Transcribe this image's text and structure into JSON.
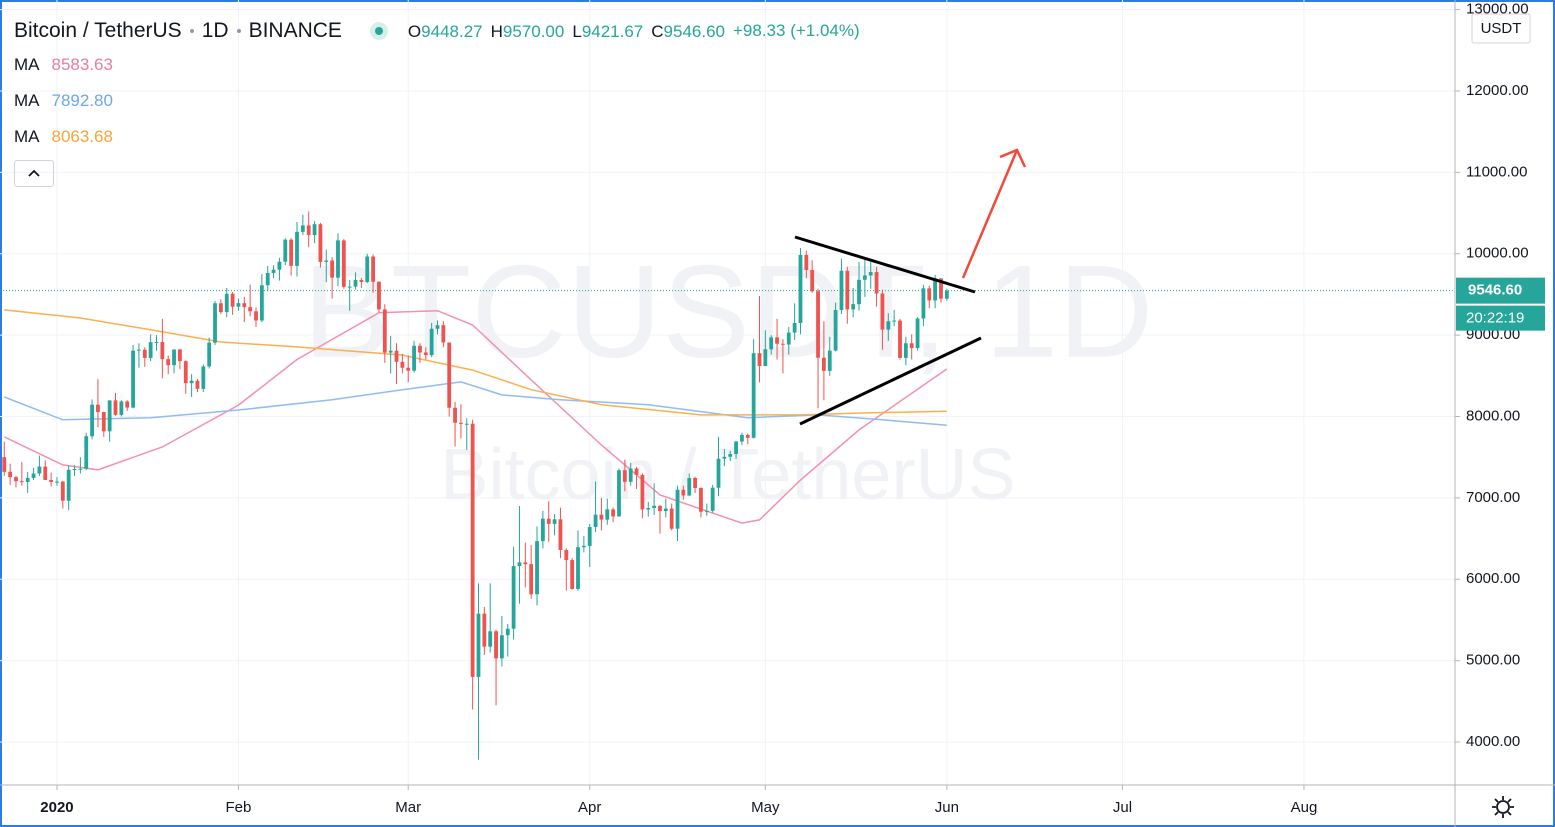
{
  "chart_data": {
    "type": "candlestick",
    "symbol": "Bitcoin / TetherUS",
    "interval": "1D",
    "exchange": "BINANCE",
    "readout_keys": [
      "O",
      "H",
      "L",
      "C"
    ],
    "readout": [
      {
        "value": 9448.27,
        "label": "9448.27"
      },
      {
        "value": 9570,
        "label": "9570.00"
      },
      {
        "value": 9421.67,
        "label": "9421.67"
      },
      {
        "value": 9546.6,
        "label": "9546.60"
      }
    ],
    "change": {
      "value": 98.33,
      "label": "+98.33 (+1.04%)"
    },
    "watermark": [
      "BTCUSDT, 1D",
      "Bitcoin / TetherUS"
    ],
    "currency": "USDT",
    "last_price": {
      "value": 9546.6,
      "label": "9546.60"
    },
    "countdown": "20:22:19",
    "up_color": "#26a69a",
    "down_color": "#ef5350",
    "grid": true,
    "xlim": [
      -0.73,
      247.8
    ],
    "xticks": [
      {
        "value": 9,
        "label": "2020"
      },
      {
        "value": 40,
        "label": "Feb"
      },
      {
        "value": 69,
        "label": "Mar"
      },
      {
        "value": 100,
        "label": "Apr"
      },
      {
        "value": 130,
        "label": "May"
      },
      {
        "value": 161,
        "label": "Jun"
      },
      {
        "value": 191,
        "label": "Jul"
      },
      {
        "value": 222,
        "label": "Aug"
      }
    ],
    "ylim": [
      3472,
      13118
    ],
    "yticks": [
      {
        "value": 4000,
        "label": "4000.00"
      },
      {
        "value": 5000,
        "label": "5000.00"
      },
      {
        "value": 6000,
        "label": "6000.00"
      },
      {
        "value": 7000,
        "label": "7000.00"
      },
      {
        "value": 8000,
        "label": "8000.00"
      },
      {
        "value": 9000,
        "label": "9000.00"
      },
      {
        "value": 10000,
        "label": "10000.00"
      },
      {
        "value": 11000,
        "label": "11000.00"
      },
      {
        "value": 12000,
        "label": "12000.00"
      },
      {
        "value": 13000,
        "label": "13000.00"
      }
    ],
    "ohlc": [
      [
        7500,
        7690,
        7270,
        7320
      ],
      [
        7320,
        7420,
        7160,
        7255
      ],
      [
        7255,
        7270,
        7130,
        7205
      ],
      [
        7205,
        7440,
        7150,
        7195
      ],
      [
        7195,
        7320,
        7060,
        7245
      ],
      [
        7245,
        7370,
        7220,
        7300
      ],
      [
        7300,
        7520,
        7270,
        7385
      ],
      [
        7385,
        7460,
        7290,
        7220
      ],
      [
        7220,
        7310,
        7140,
        7195
      ],
      [
        7195,
        7255,
        7150,
        7200
      ],
      [
        7200,
        7210,
        6870,
        6965
      ],
      [
        6965,
        7400,
        6850,
        7345
      ],
      [
        7345,
        7400,
        7270,
        7355
      ],
      [
        7355,
        7500,
        7300,
        7358
      ],
      [
        7358,
        7800,
        7340,
        7758
      ],
      [
        7758,
        8210,
        7720,
        8145
      ],
      [
        8145,
        8460,
        7870,
        8055
      ],
      [
        8055,
        8060,
        7750,
        7818
      ],
      [
        7818,
        8200,
        7690,
        8198
      ],
      [
        8198,
        8290,
        8010,
        8020
      ],
      [
        8020,
        8200,
        8000,
        8185
      ],
      [
        8185,
        8200,
        8070,
        8110
      ],
      [
        8110,
        8880,
        8100,
        8810
      ],
      [
        8810,
        8900,
        8600,
        8821
      ],
      [
        8821,
        8850,
        8610,
        8720
      ],
      [
        8720,
        9010,
        8680,
        8913
      ],
      [
        8913,
        9000,
        8810,
        8915
      ],
      [
        8915,
        9200,
        8470,
        8705
      ],
      [
        8705,
        8750,
        8520,
        8631
      ],
      [
        8631,
        8770,
        8530,
        8824
      ],
      [
        8824,
        8830,
        8580,
        8680
      ],
      [
        8680,
        8690,
        8280,
        8410
      ],
      [
        8410,
        8520,
        8240,
        8440
      ],
      [
        8440,
        8460,
        8300,
        8340
      ],
      [
        8340,
        8640,
        8300,
        8615
      ],
      [
        8615,
        8970,
        8590,
        8908
      ],
      [
        8908,
        9420,
        8880,
        9392
      ],
      [
        9392,
        9440,
        9260,
        9284
      ],
      [
        9284,
        9580,
        9220,
        9508
      ],
      [
        9508,
        9530,
        9250,
        9350
      ],
      [
        9350,
        9450,
        9300,
        9393
      ],
      [
        9393,
        9470,
        9160,
        9344
      ],
      [
        9344,
        9620,
        9230,
        9293
      ],
      [
        9293,
        9340,
        9100,
        9180
      ],
      [
        9180,
        9750,
        9160,
        9613
      ],
      [
        9613,
        9850,
        9540,
        9764
      ],
      [
        9764,
        9860,
        9700,
        9804
      ],
      [
        9804,
        9950,
        9670,
        9902
      ],
      [
        9902,
        10190,
        9860,
        10173
      ],
      [
        10173,
        10190,
        9730,
        9851
      ],
      [
        9851,
        10390,
        9720,
        10269
      ],
      [
        10269,
        10480,
        10230,
        10348
      ],
      [
        10348,
        10520,
        10080,
        10230
      ],
      [
        10230,
        10400,
        10130,
        10363
      ],
      [
        10363,
        10380,
        9830,
        9900
      ],
      [
        9900,
        10050,
        9650,
        9917
      ],
      [
        9917,
        9960,
        9450,
        9706
      ],
      [
        9706,
        10250,
        9600,
        10164
      ],
      [
        10164,
        10180,
        9570,
        9593
      ],
      [
        9593,
        9680,
        9300,
        9596
      ],
      [
        9596,
        9770,
        9560,
        9677
      ],
      [
        9677,
        9700,
        9580,
        9653
      ],
      [
        9653,
        10000,
        9640,
        9966
      ],
      [
        9966,
        9990,
        9520,
        9656
      ],
      [
        9656,
        9660,
        9280,
        9316
      ],
      [
        9316,
        9380,
        8660,
        8785
      ],
      [
        8785,
        8990,
        8530,
        8808
      ],
      [
        8808,
        8900,
        8400,
        8672
      ],
      [
        8672,
        8770,
        8530,
        8599
      ],
      [
        8599,
        8750,
        8420,
        8563
      ],
      [
        8563,
        8930,
        8540,
        8869
      ],
      [
        8869,
        8900,
        8660,
        8787
      ],
      [
        8787,
        8850,
        8700,
        8755
      ],
      [
        8755,
        9150,
        8730,
        9078
      ],
      [
        9078,
        9180,
        9010,
        9122
      ],
      [
        9122,
        9170,
        8850,
        8909
      ],
      [
        8909,
        8910,
        8000,
        8108
      ],
      [
        8108,
        8180,
        7630,
        7923
      ],
      [
        7923,
        8150,
        7730,
        7909
      ],
      [
        7909,
        7980,
        7590,
        7911
      ],
      [
        7911,
        7960,
        4400,
        4800
      ],
      [
        4800,
        5950,
        3782,
        5578
      ],
      [
        5578,
        5660,
        5070,
        5172
      ],
      [
        5172,
        5950,
        5100,
        5361
      ],
      [
        5361,
        5380,
        4450,
        5028
      ],
      [
        5028,
        5550,
        4930,
        5312
      ],
      [
        5312,
        5450,
        5050,
        5393
      ],
      [
        5393,
        6400,
        5260,
        6162
      ],
      [
        6162,
        6900,
        5700,
        6208
      ],
      [
        6208,
        6450,
        5900,
        6186
      ],
      [
        6186,
        6420,
        5760,
        5816
      ],
      [
        5816,
        6650,
        5680,
        6469
      ],
      [
        6469,
        6840,
        6380,
        6744
      ],
      [
        6744,
        6960,
        6460,
        6681
      ],
      [
        6681,
        6800,
        6540,
        6737
      ],
      [
        6737,
        6880,
        6260,
        6360
      ],
      [
        6360,
        6380,
        5860,
        6236
      ],
      [
        6236,
        6260,
        5870,
        5881
      ],
      [
        5881,
        6600,
        5860,
        6394
      ],
      [
        6394,
        6530,
        6330,
        6410
      ],
      [
        6410,
        6680,
        6150,
        6642
      ],
      [
        6642,
        7200,
        6580,
        6794
      ],
      [
        6794,
        7000,
        6600,
        6733
      ],
      [
        6733,
        6990,
        6670,
        6859
      ],
      [
        6859,
        6880,
        6700,
        6772
      ],
      [
        6772,
        7360,
        6770,
        7340
      ],
      [
        7340,
        7470,
        7080,
        7198
      ],
      [
        7198,
        7430,
        7150,
        7361
      ],
      [
        7361,
        7380,
        7110,
        7283
      ],
      [
        7283,
        7300,
        6750,
        6858
      ],
      [
        6858,
        6950,
        6770,
        6876
      ],
      [
        6876,
        7180,
        6790,
        6903
      ],
      [
        6903,
        6910,
        6560,
        6838
      ],
      [
        6838,
        6990,
        6760,
        6869
      ],
      [
        6869,
        6930,
        6600,
        6621
      ],
      [
        6621,
        7150,
        6470,
        7100
      ],
      [
        7100,
        7150,
        6980,
        7030
      ],
      [
        7030,
        7300,
        7020,
        7244
      ],
      [
        7244,
        7260,
        7060,
        7122
      ],
      [
        7122,
        7130,
        6760,
        6830
      ],
      [
        6830,
        6930,
        6780,
        6841
      ],
      [
        6841,
        7160,
        6820,
        7125
      ],
      [
        7125,
        7750,
        7020,
        7482
      ],
      [
        7482,
        7600,
        7390,
        7505
      ],
      [
        7505,
        7580,
        7450,
        7539
      ],
      [
        7539,
        7700,
        7480,
        7693
      ],
      [
        7693,
        7800,
        7650,
        7774
      ],
      [
        7774,
        7790,
        7660,
        7738
      ],
      [
        7738,
        8950,
        7730,
        8778
      ],
      [
        8778,
        9480,
        8420,
        8620
      ],
      [
        8620,
        9060,
        8620,
        8826
      ],
      [
        8826,
        9000,
        8760,
        8972
      ],
      [
        8972,
        9200,
        8700,
        8894
      ],
      [
        8894,
        8950,
        8530,
        8884
      ],
      [
        8884,
        9100,
        8760,
        9031
      ],
      [
        9031,
        9390,
        8940,
        9149
      ],
      [
        9149,
        10070,
        9010,
        9986
      ],
      [
        9986,
        10040,
        9700,
        9800
      ],
      [
        9800,
        9920,
        9520,
        9539
      ],
      [
        9539,
        9570,
        8100,
        8722
      ],
      [
        8722,
        9170,
        8200,
        8561
      ],
      [
        8561,
        8980,
        8500,
        8810
      ],
      [
        8810,
        9400,
        8800,
        9309
      ],
      [
        9309,
        9940,
        9260,
        9791
      ],
      [
        9791,
        9840,
        9140,
        9316
      ],
      [
        9316,
        9580,
        9220,
        9381
      ],
      [
        9381,
        9900,
        9300,
        9680
      ],
      [
        9680,
        9950,
        9470,
        9733
      ],
      [
        9733,
        9900,
        9570,
        9775
      ],
      [
        9775,
        9840,
        9350,
        9511
      ],
      [
        9511,
        9560,
        8820,
        9068
      ],
      [
        9068,
        9270,
        8930,
        9170
      ],
      [
        9170,
        9310,
        9110,
        9179
      ],
      [
        9179,
        9200,
        8700,
        8720
      ],
      [
        8720,
        8980,
        8630,
        8900
      ],
      [
        8900,
        9010,
        8700,
        8841
      ],
      [
        8841,
        9220,
        8810,
        9204
      ],
      [
        9204,
        9620,
        9110,
        9575
      ],
      [
        9575,
        9610,
        9330,
        9427
      ],
      [
        9427,
        9740,
        9330,
        9697
      ],
      [
        9697,
        9700,
        9400,
        9448
      ],
      [
        9448.27,
        9570,
        9421.67,
        9546.6
      ]
    ],
    "ma": [
      {
        "name": "MA",
        "color": "#f48fb1",
        "legend_color": "#e57fa0",
        "legend_value": 8583.63,
        "x": [
          0,
          10,
          16,
          27,
          40,
          50,
          64,
          74,
          80,
          90,
          102,
          112,
          126,
          129,
          136,
          146,
          161
        ],
        "values": [
          7750,
          7405,
          7345,
          7625,
          8140,
          8700,
          9275,
          9300,
          9125,
          8450,
          7650,
          7035,
          6690,
          6730,
          7220,
          7835,
          8583.63
        ]
      },
      {
        "name": "MA",
        "color": "#8fbcf2",
        "legend_color": "#6fa6ec",
        "legend_value": {
          "value": 7892.8,
          "label": "7892.80"
        },
        "x": [
          0,
          10,
          25,
          40,
          56,
          68,
          78,
          85,
          95,
          110,
          127,
          139,
          150,
          161
        ],
        "values": [
          8240,
          7960,
          7985,
          8080,
          8205,
          8330,
          8425,
          8265,
          8205,
          8145,
          7985,
          8020,
          7960,
          7892.8
        ]
      },
      {
        "name": "MA",
        "color": "#f9b04f",
        "legend_color": "#f5a53a",
        "legend_value": 8063.68,
        "x": [
          0,
          13,
          25,
          37,
          50,
          68,
          80,
          90,
          102,
          119,
          136,
          148,
          161
        ],
        "values": [
          9310,
          9210,
          9065,
          8915,
          8855,
          8755,
          8570,
          8330,
          8145,
          8020,
          8020,
          8045,
          8063.68
        ]
      }
    ]
  }
}
